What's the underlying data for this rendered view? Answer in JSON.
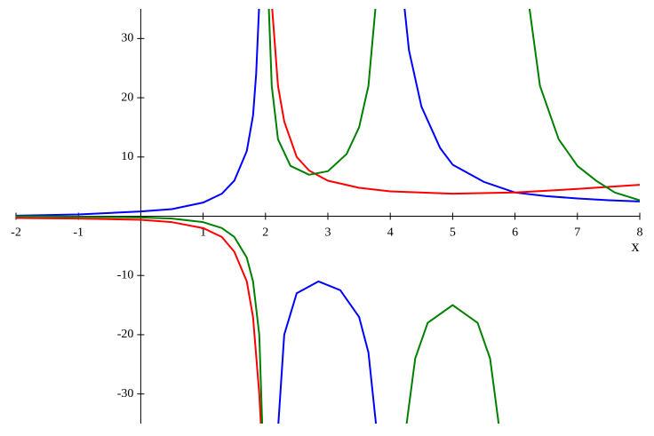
{
  "chart_data": {
    "type": "line",
    "xlabel": "x",
    "xlim": [
      -2,
      8
    ],
    "ylim": [
      -35,
      35
    ],
    "xticks": [
      -2,
      -1,
      1,
      2,
      3,
      4,
      5,
      6,
      7,
      8
    ],
    "yticks": [
      -30,
      -20,
      -10,
      10,
      20,
      30
    ],
    "series": [
      {
        "color": "#0000ff",
        "x": [
          -2,
          -1,
          0,
          0.5,
          1,
          1.3,
          1.5,
          1.7,
          1.8,
          1.85,
          1.9,
          null,
          2.2,
          2.3,
          2.5,
          2.85,
          3.2,
          3.5,
          3.65,
          3.78,
          null,
          4.22,
          4.3,
          4.5,
          4.8,
          5,
          5.5,
          6,
          6.5,
          7,
          7.5,
          8
        ],
        "values": [
          0.1,
          0.3,
          0.8,
          1.2,
          2.3,
          3.8,
          6,
          11,
          17,
          24,
          36,
          null,
          -36,
          -20,
          -13,
          -11,
          -12.5,
          -17,
          -23,
          -36,
          null,
          36,
          28,
          18.5,
          11.5,
          8.7,
          5.8,
          4,
          3.4,
          3,
          2.7,
          2.5
        ]
      },
      {
        "color": "#ff0000",
        "x": [
          -2,
          -1,
          0,
          0.5,
          1,
          1.3,
          1.5,
          1.7,
          1.8,
          1.9,
          1.93,
          null,
          2.1,
          2.2,
          2.3,
          2.5,
          2.7,
          3,
          3.5,
          4,
          5,
          6,
          7,
          8
        ],
        "values": [
          -0.3,
          -0.4,
          -0.6,
          -1,
          -2,
          -3.5,
          -6,
          -11,
          -17,
          -30,
          -36,
          null,
          36,
          22,
          16,
          10,
          7.7,
          6,
          4.8,
          4.2,
          3.8,
          4,
          4.6,
          5.3
        ]
      },
      {
        "color": "#008000",
        "x": [
          -2,
          -1,
          0,
          0.5,
          1,
          1.3,
          1.5,
          1.7,
          1.8,
          1.9,
          1.95,
          null,
          2.05,
          2.1,
          2.2,
          2.4,
          2.7,
          3,
          3.3,
          3.5,
          3.65,
          3.77,
          null,
          4.25,
          4.4,
          4.6,
          5,
          5.4,
          5.6,
          5.75,
          null,
          6.22,
          6.4,
          6.7,
          7,
          7.3,
          7.6,
          8
        ],
        "values": [
          0,
          -0.1,
          -0.2,
          -0.4,
          -1,
          -2,
          -3.5,
          -7,
          -11,
          -20,
          -36,
          null,
          36,
          22,
          13,
          8.5,
          7,
          7.6,
          10.5,
          15,
          22,
          36,
          null,
          -36,
          -24,
          -18,
          -15,
          -18,
          -24,
          -36,
          null,
          36,
          22,
          13,
          8.5,
          6,
          4,
          2.7
        ]
      }
    ]
  }
}
